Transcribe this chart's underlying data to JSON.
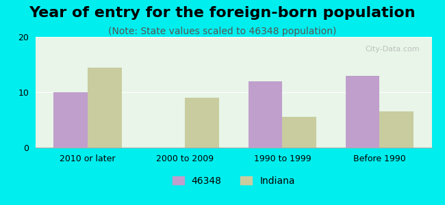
{
  "title": "Year of entry for the foreign-born population",
  "subtitle": "(Note: State values scaled to 46348 population)",
  "categories": [
    "2010 or later",
    "2000 to 2009",
    "1990 to 1999",
    "Before 1990"
  ],
  "values_46348": [
    10.0,
    0.0,
    12.0,
    13.0
  ],
  "values_indiana": [
    14.5,
    9.0,
    5.5,
    6.5
  ],
  "color_46348": "#c09fcc",
  "color_indiana": "#c8cc9f",
  "legend_46348": "46348",
  "legend_indiana": "Indiana",
  "ylim": [
    0,
    20
  ],
  "yticks": [
    0,
    10,
    20
  ],
  "bar_width": 0.35,
  "background_color": "#00eeee",
  "plot_bg_color_top": "#f0fff0",
  "plot_bg_color_bottom": "#ffffff",
  "title_fontsize": 16,
  "subtitle_fontsize": 10,
  "tick_fontsize": 9,
  "legend_fontsize": 10
}
